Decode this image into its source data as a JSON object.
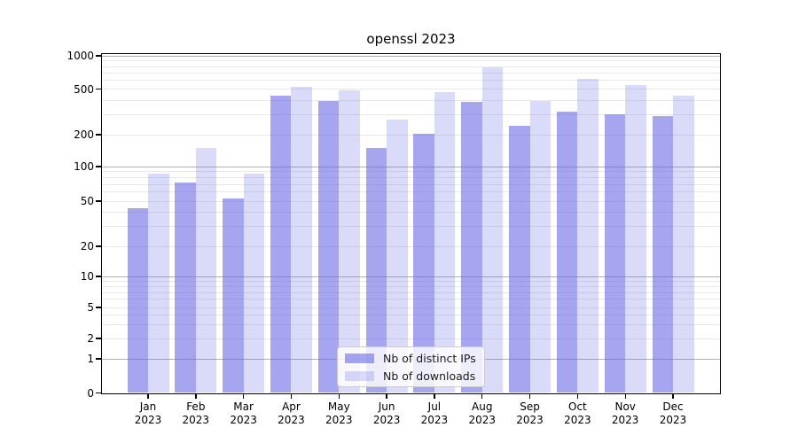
{
  "title": "openssl 2023",
  "y_axis": {
    "tick_values": [
      0,
      1,
      2,
      5,
      10,
      20,
      50,
      100,
      200,
      500,
      1000
    ],
    "tick_labels": [
      "0",
      "1",
      "2",
      "5",
      "10",
      "20",
      "50",
      "100",
      "200",
      "500",
      "1000"
    ]
  },
  "x_axis": {
    "month_labels": [
      "Jan",
      "Feb",
      "Mar",
      "Apr",
      "May",
      "Jun",
      "Jul",
      "Aug",
      "Sep",
      "Oct",
      "Nov",
      "Dec"
    ],
    "year_label": "2023"
  },
  "legend": {
    "items": [
      {
        "label": "Nb of distinct IPs",
        "swatch_color": "rgba(102,102,230,0.58)"
      },
      {
        "label": "Nb of downloads",
        "swatch_color": "rgba(102,102,230,0.24)"
      }
    ]
  },
  "colors": {
    "bar_distinct_ips": "#a8a8f2",
    "bar_downloads": "#dbdbfa",
    "grid_major": "#b0b0b0",
    "grid_minor": "#e8e8e8",
    "axis": "#000000",
    "background": "#ffffff"
  },
  "chart_data": {
    "type": "bar",
    "title": "openssl 2023",
    "categories": [
      "Jan 2023",
      "Feb 2023",
      "Mar 2023",
      "Apr 2023",
      "May 2023",
      "Jun 2023",
      "Jul 2023",
      "Aug 2023",
      "Sep 2023",
      "Oct 2023",
      "Nov 2023",
      "Dec 2023"
    ],
    "series": [
      {
        "name": "Nb of distinct IPs",
        "fill": "rgba(102,102,230,0.58)",
        "values": [
          43,
          73,
          53,
          440,
          395,
          150,
          205,
          385,
          240,
          320,
          300,
          290
        ]
      },
      {
        "name": "Nb of downloads",
        "fill": "rgba(102,102,230,0.24)",
        "values": [
          86,
          150,
          86,
          520,
          485,
          270,
          470,
          780,
          390,
          615,
          545,
          440
        ]
      }
    ],
    "y_scale": "symlog",
    "y_ticks": [
      0,
      1,
      2,
      5,
      10,
      20,
      50,
      100,
      200,
      500,
      1000
    ],
    "ylim": [
      0,
      1120
    ],
    "grid": true,
    "legend_position": "lower center"
  }
}
